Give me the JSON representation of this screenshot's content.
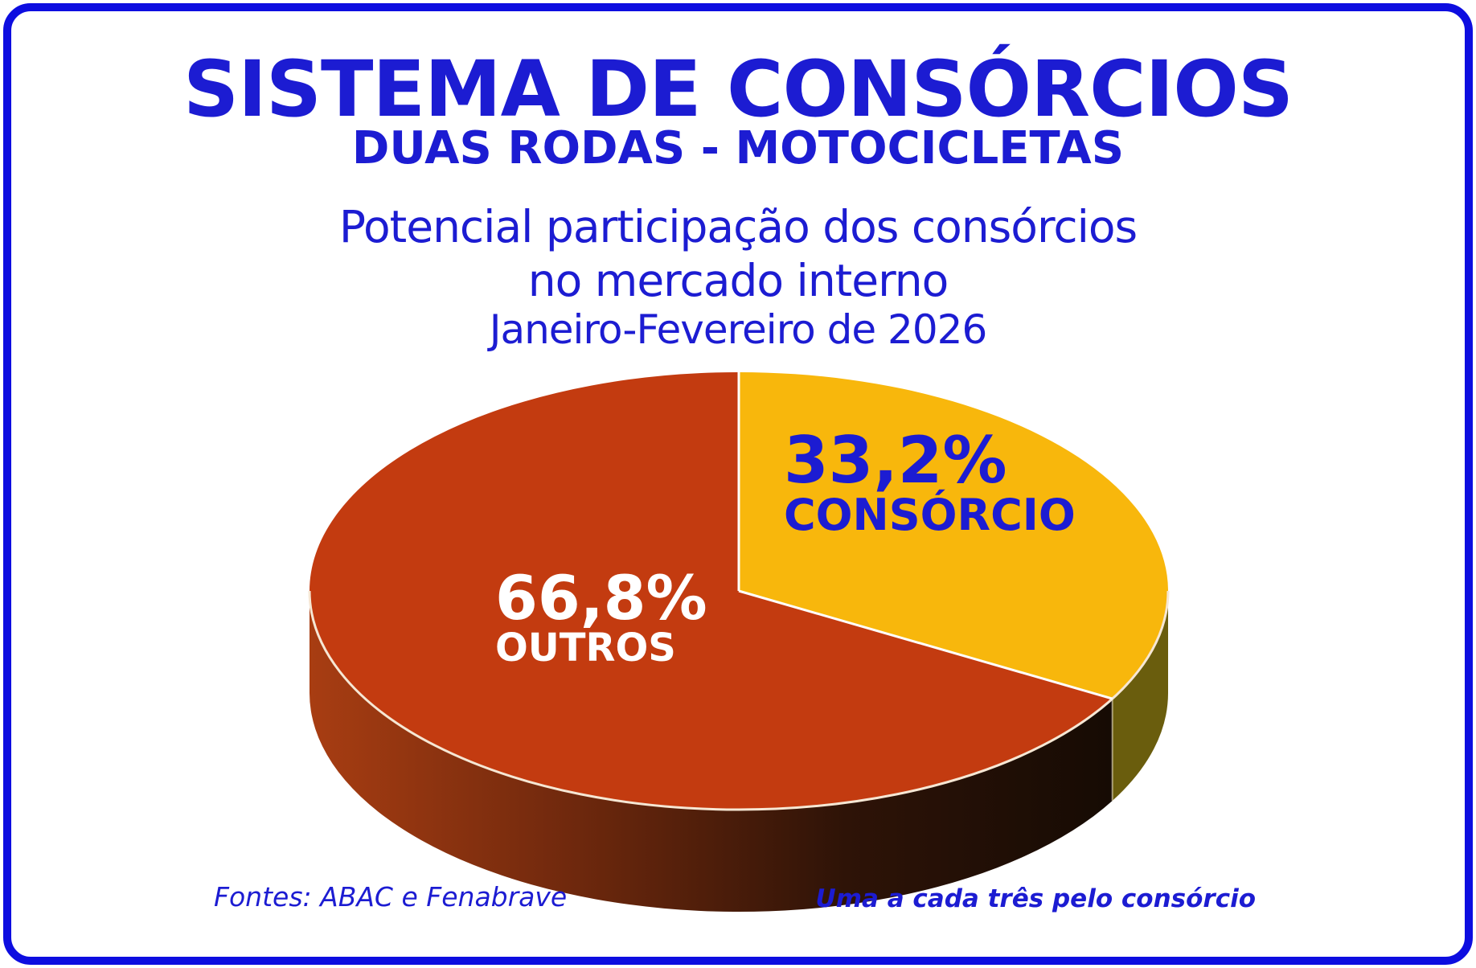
{
  "header": {
    "title": "SISTEMA DE CONSÓRCIOS",
    "subtitle": "DUAS RODAS - MOTOCICLETAS",
    "caption_line1": "Potencial participação dos consórcios",
    "caption_line2": "no mercado interno",
    "period": "Janeiro-Fevereiro de 2026"
  },
  "footer": {
    "source": "Fontes: ABAC e Fenabrave",
    "note": "Uma a cada três pelo consórcio"
  },
  "colors": {
    "frame_blue": "#0d0de0",
    "text_blue": "#1c1cd2",
    "rim_line": "#f6e7d4",
    "radius_line": "#ffffff"
  },
  "chart_data": {
    "type": "pie",
    "style": "3d",
    "title": "SISTEMA DE CONSÓRCIOS - DUAS RODAS - MOTOCICLETAS",
    "subtitle": "Potencial participação dos consórcios no mercado interno, Janeiro-Fevereiro de 2026",
    "start_position": "12-oclock",
    "direction": "clockwise",
    "legend_position": "inside-slices",
    "slices": [
      {
        "label": "CONSÓRCIO",
        "value_pct": 33.2,
        "display_pct": "33,2%",
        "top_color": "#f8b70c",
        "side_color": "#6a5d0d",
        "label_color": "#1c1cd2"
      },
      {
        "label": "OUTROS",
        "value_pct": 66.8,
        "display_pct": "66,8%",
        "top_color": "#c33b10",
        "side_gradient": [
          "#a83d12",
          "#6e280d",
          "#2e1307",
          "#160b04"
        ],
        "label_color": "#ffffff"
      }
    ]
  }
}
